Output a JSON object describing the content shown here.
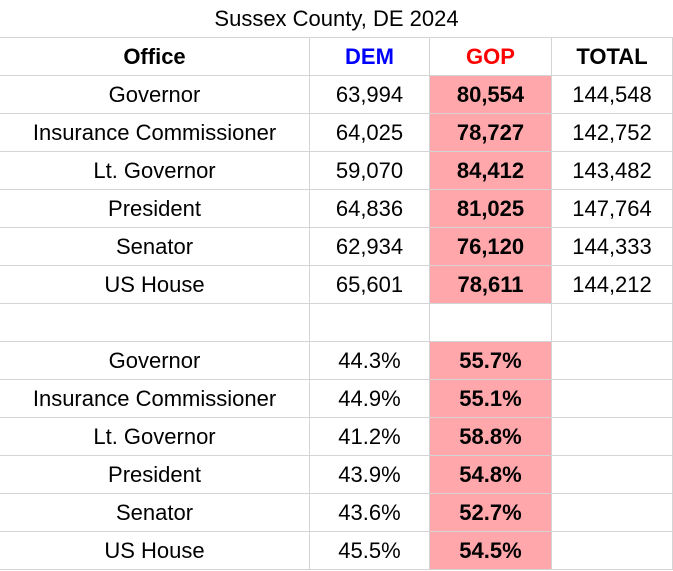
{
  "table": {
    "title": "Sussex County, DE 2024",
    "header": [
      "Office",
      "DEM",
      "GOP",
      "TOTAL"
    ],
    "rows": [
      [
        "Governor",
        "63,994",
        "80,554",
        "144,548"
      ],
      [
        "Insurance Commissioner",
        "64,025",
        "78,727",
        "142,752"
      ],
      [
        "Lt. Governor",
        "59,070",
        "84,412",
        "143,482"
      ],
      [
        "President",
        "64,836",
        "81,025",
        "147,764"
      ],
      [
        "Senator",
        "62,934",
        "76,120",
        "144,333"
      ],
      [
        "US House",
        "65,601",
        "78,611",
        "144,212"
      ]
    ],
    "percent_rows": [
      [
        "Governor",
        "44.3%",
        "55.7%"
      ],
      [
        "Insurance Commissioner",
        "44.9%",
        "55.1%"
      ],
      [
        "Lt. Governor",
        "41.2%",
        "58.8%"
      ],
      [
        "President",
        "43.9%",
        "54.8%"
      ],
      [
        "Senator",
        "43.6%",
        "52.7%"
      ],
      [
        "US House",
        "45.5%",
        "54.5%"
      ]
    ]
  }
}
